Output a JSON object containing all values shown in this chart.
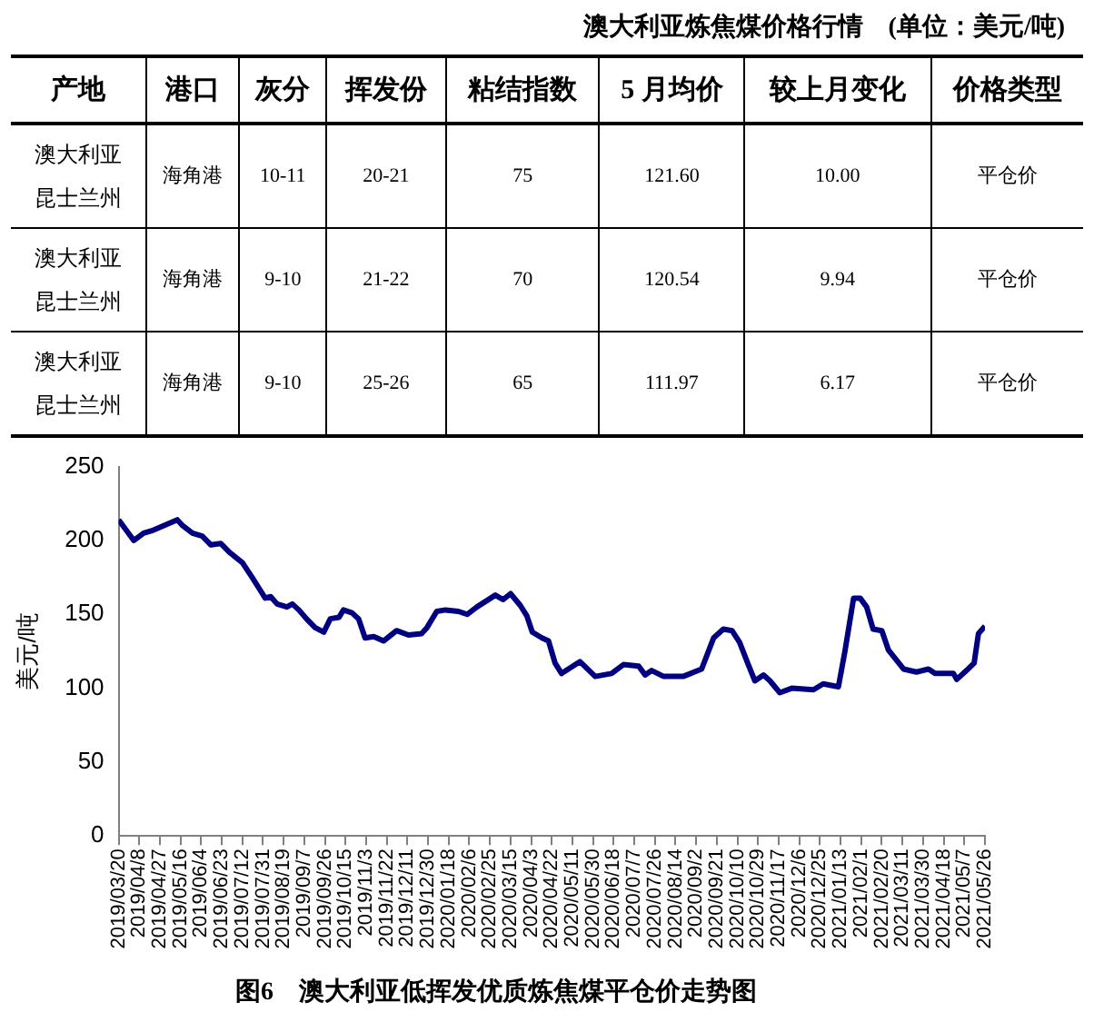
{
  "chart_data": [
    {
      "type": "other",
      "title": "澳大利亚炼焦煤价格行情　(单位：美元/吨)",
      "categories": [
        "产地",
        "港口",
        "灰分",
        "挥发份",
        "粘结指数",
        "5 月均价",
        "较上月变化",
        "价格类型"
      ],
      "cell_labels": [
        [
          "澳大利亚昆士兰州",
          "海角港",
          "10-11",
          "20-21",
          "75",
          "121.60",
          "10.00",
          "平仓价"
        ],
        [
          "澳大利亚昆士兰州",
          "海角港",
          "9-10",
          "21-22",
          "70",
          "120.54",
          "9.94",
          "平仓价"
        ],
        [
          "澳大利亚昆士兰州",
          "海角港",
          "9-10",
          "25-26",
          "65",
          "111.97",
          "6.17",
          "平仓价"
        ]
      ]
    },
    {
      "type": "line",
      "title": "图6　澳大利亚低挥发优质炼焦煤平仓价走势图",
      "ylabel": "美元/吨",
      "x": [
        "2019-03-20",
        "2019-04-03",
        "2019-04-12",
        "2019-04-21",
        "2019-05-13",
        "2019-05-18",
        "2019-05-27",
        "2019-06-05",
        "2019-06-13",
        "2019-06-22",
        "2019-06-30",
        "2019-07-12",
        "2019-07-21",
        "2019-07-27",
        "2019-08-02",
        "2019-08-07",
        "2019-08-13",
        "2019-08-22",
        "2019-08-27",
        "2019-09-02",
        "2019-09-09",
        "2019-09-17",
        "2019-09-25",
        "2019-10-01",
        "2019-10-09",
        "2019-10-13",
        "2019-10-21",
        "2019-10-27",
        "2019-11-02",
        "2019-11-10",
        "2019-11-19",
        "2019-12-01",
        "2019-12-12",
        "2019-12-24",
        "2019-12-29",
        "2020-01-07",
        "2020-01-15",
        "2020-01-27",
        "2020-02-04",
        "2020-02-13",
        "2020-03-01",
        "2020-03-08",
        "2020-03-15",
        "2020-03-24",
        "2020-03-30",
        "2020-04-04",
        "2020-04-13",
        "2020-04-19",
        "2020-04-25",
        "2020-05-01",
        "2020-05-18",
        "2020-06-01",
        "2020-06-16",
        "2020-06-27",
        "2020-07-11",
        "2020-07-17",
        "2020-07-23",
        "2020-08-03",
        "2020-08-21",
        "2020-09-07",
        "2020-09-18",
        "2020-09-27",
        "2020-10-05",
        "2020-10-12",
        "2020-10-20",
        "2020-10-26",
        "2020-11-03",
        "2020-11-09",
        "2020-11-18",
        "2020-11-29",
        "2020-12-19",
        "2020-12-28",
        "2021-01-11",
        "2021-01-17",
        "2021-01-25",
        "2021-01-31",
        "2021-02-06",
        "2021-02-12",
        "2021-02-20",
        "2021-02-26",
        "2021-03-12",
        "2021-03-24",
        "2021-04-04",
        "2021-04-10",
        "2021-04-27",
        "2021-04-30",
        "2021-05-09",
        "2021-05-16",
        "2021-05-20",
        "2021-05-26"
      ],
      "series": [
        {
          "color": "#000080",
          "values": [
            214,
            200,
            205,
            207,
            214,
            210,
            205,
            203,
            197,
            198,
            192,
            185,
            175,
            168,
            161,
            162,
            157,
            155,
            157,
            153,
            147,
            141,
            138,
            147,
            148,
            153,
            151,
            147,
            134,
            135,
            132,
            139,
            136,
            137,
            141,
            152,
            153,
            152,
            150,
            155,
            163,
            160,
            164,
            156,
            149,
            138,
            134,
            132,
            117,
            110,
            118,
            108,
            110,
            116,
            115,
            109,
            112,
            108,
            108,
            113,
            134,
            140,
            139,
            131,
            116,
            105,
            109,
            105,
            97,
            100,
            99,
            103,
            101,
            125,
            161,
            161,
            155,
            140,
            139,
            126,
            113,
            111,
            113,
            110,
            110,
            106,
            112,
            117,
            137,
            142
          ]
        }
      ],
      "xlim": [
        "2019-03-20",
        "2021-05-26"
      ],
      "xticks": [
        {
          "value": "2019-03-20",
          "label": "2019/03/20"
        },
        {
          "value": "2019-04-08",
          "label": "2019/04/8"
        },
        {
          "value": "2019-04-27",
          "label": "2019/04/27"
        },
        {
          "value": "2019-05-16",
          "label": "2019/05/16"
        },
        {
          "value": "2019-06-04",
          "label": "2019/06/4"
        },
        {
          "value": "2019-06-23",
          "label": "2019/06/23"
        },
        {
          "value": "2019-07-12",
          "label": "2019/07/12"
        },
        {
          "value": "2019-07-31",
          "label": "2019/07/31"
        },
        {
          "value": "2019-08-19",
          "label": "2019/08/19"
        },
        {
          "value": "2019-09-07",
          "label": "2019/09/7"
        },
        {
          "value": "2019-09-26",
          "label": "2019/09/26"
        },
        {
          "value": "2019-10-15",
          "label": "2019/10/15"
        },
        {
          "value": "2019-11-03",
          "label": "2019/11/3"
        },
        {
          "value": "2019-11-22",
          "label": "2019/11/22"
        },
        {
          "value": "2019-12-11",
          "label": "2019/12/11"
        },
        {
          "value": "2019-12-30",
          "label": "2019/12/30"
        },
        {
          "value": "2020-01-18",
          "label": "2020/01/18"
        },
        {
          "value": "2020-02-06",
          "label": "2020/02/6"
        },
        {
          "value": "2020-02-25",
          "label": "2020/02/25"
        },
        {
          "value": "2020-03-15",
          "label": "2020/03/15"
        },
        {
          "value": "2020-04-03",
          "label": "2020/04/3"
        },
        {
          "value": "2020-04-22",
          "label": "2020/04/22"
        },
        {
          "value": "2020-05-11",
          "label": "2020/05/11"
        },
        {
          "value": "2020-05-30",
          "label": "2020/05/30"
        },
        {
          "value": "2020-06-18",
          "label": "2020/06/18"
        },
        {
          "value": "2020-07-07",
          "label": "2020/07/7"
        },
        {
          "value": "2020-07-26",
          "label": "2020/07/26"
        },
        {
          "value": "2020-08-14",
          "label": "2020/08/14"
        },
        {
          "value": "2020-09-02",
          "label": "2020/09/2"
        },
        {
          "value": "2020-09-21",
          "label": "2020/09/21"
        },
        {
          "value": "2020-10-10",
          "label": "2020/10/10"
        },
        {
          "value": "2020-10-29",
          "label": "2020/10/29"
        },
        {
          "value": "2020-11-17",
          "label": "2020/11/17"
        },
        {
          "value": "2020-12-06",
          "label": "2020/12/6"
        },
        {
          "value": "2020-12-25",
          "label": "2020/12/25"
        },
        {
          "value": "2021-01-13",
          "label": "2021/01/13"
        },
        {
          "value": "2021-02-01",
          "label": "2021/02/1"
        },
        {
          "value": "2021-02-20",
          "label": "2021/02/20"
        },
        {
          "value": "2021-03-11",
          "label": "2021/03/11"
        },
        {
          "value": "2021-03-30",
          "label": "2021/03/30"
        },
        {
          "value": "2021-04-18",
          "label": "2021/04/18"
        },
        {
          "value": "2021-05-07",
          "label": "2021/05/7"
        },
        {
          "value": "2021-05-26",
          "label": "2021/05/26"
        }
      ],
      "ylim": [
        0,
        250
      ],
      "yticks": [
        0,
        50,
        100,
        150,
        200,
        250
      ],
      "grid": false,
      "legend": false,
      "marker": "none",
      "line_style": "solid"
    }
  ]
}
